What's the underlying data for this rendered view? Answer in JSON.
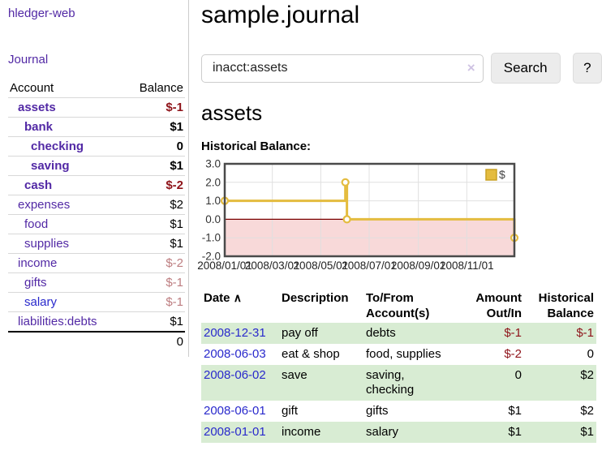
{
  "app": {
    "brand": "hledger-web",
    "nav_journal": "Journal"
  },
  "colors": {
    "accent_purple": "#5229a5",
    "link_blue": "#2929cc",
    "negative_red": "#8e1319",
    "negative_muted_red": "#bd7d80",
    "row_green": "#d8ecd3",
    "chart_gold": "#e4bc3f",
    "chart_negative_bg": "#f8d9d9",
    "chart_zero_line": "#7a0000",
    "chart_border": "#4a4a4a"
  },
  "sidebar": {
    "accounts_header": {
      "account": "Account",
      "balance": "Balance"
    },
    "accounts": [
      {
        "name": "assets",
        "indent": 1,
        "bold": true,
        "balance": "$-1",
        "balance_style": "neg"
      },
      {
        "name": "bank",
        "indent": 2,
        "bold": true,
        "balance": "$1",
        "balance_style": "pos"
      },
      {
        "name": "checking",
        "indent": 3,
        "bold": true,
        "balance": "0",
        "balance_style": "pos"
      },
      {
        "name": "saving",
        "indent": 3,
        "bold": true,
        "balance": "$1",
        "balance_style": "pos"
      },
      {
        "name": "cash",
        "indent": 2,
        "bold": true,
        "balance": "$-2",
        "balance_style": "neg"
      },
      {
        "name": "expenses",
        "indent": 1,
        "bold": false,
        "balance": "$2",
        "balance_style": "pos"
      },
      {
        "name": "food",
        "indent": 2,
        "bold": false,
        "balance": "$1",
        "balance_style": "pos"
      },
      {
        "name": "supplies",
        "indent": 2,
        "bold": false,
        "balance": "$1",
        "balance_style": "pos"
      },
      {
        "name": "income",
        "indent": 1,
        "bold": false,
        "balance": "$-2",
        "balance_style": "neg-muted"
      },
      {
        "name": "gifts",
        "indent": 2,
        "bold": false,
        "balance": "$-1",
        "balance_style": "neg-muted"
      },
      {
        "name": "salary",
        "indent": 2,
        "bold": false,
        "blue": true,
        "balance": "$-1",
        "balance_style": "neg-muted"
      },
      {
        "name": "liabilities:debts",
        "indent": 1,
        "bold": false,
        "balance": "$1",
        "balance_style": "pos"
      }
    ],
    "total": "0"
  },
  "header": {
    "title": "sample.journal"
  },
  "search": {
    "value": "inacct:assets",
    "clear_icon": "×",
    "button_label": "Search",
    "help_label": "?"
  },
  "report": {
    "heading": "assets",
    "chart_label": "Historical Balance:"
  },
  "chart_data": {
    "type": "line",
    "step": true,
    "title": "Historical Balance",
    "series": [
      {
        "name": "$",
        "color": "#e4bc3f",
        "points": [
          [
            "2008-01-01",
            1.0
          ],
          [
            "2008-06-01",
            2.0
          ],
          [
            "2008-06-03",
            0.0
          ],
          [
            "2008-12-31",
            -1.0
          ]
        ]
      }
    ],
    "xlim": [
      "2008-01-01",
      "2008-12-31"
    ],
    "ylim": [
      -2.0,
      3.0
    ],
    "x_ticks": [
      "2008/01/01",
      "2008/03/01",
      "2008/05/01",
      "2008/07/01",
      "2008/09/01",
      "2008/11/01"
    ],
    "y_ticks": [
      3.0,
      2.0,
      1.0,
      0.0,
      -1.0,
      -2.0
    ],
    "legend": "$",
    "legend_position": "top-right",
    "grid": true,
    "negative_region_color": "#f8d9d9",
    "zero_line_color": "#7a0000"
  },
  "register": {
    "sort_icon": "∧",
    "columns": [
      {
        "lines": [
          "Date"
        ],
        "sorted": true,
        "align": "left"
      },
      {
        "lines": [
          "Description"
        ],
        "align": "left"
      },
      {
        "lines": [
          "To/From",
          "Account(s)"
        ],
        "align": "left"
      },
      {
        "lines": [
          "Amount",
          "Out/In"
        ],
        "align": "right"
      },
      {
        "lines": [
          "Historical",
          "Balance"
        ],
        "align": "right"
      }
    ],
    "rows": [
      {
        "date": "2008-12-31",
        "description": "pay off",
        "accounts": "debts",
        "amount": "$-1",
        "amount_neg": true,
        "balance": "$-1",
        "balance_neg": true,
        "shaded": true
      },
      {
        "date": "2008-06-03",
        "description": "eat & shop",
        "accounts": "food, supplies",
        "amount": "$-2",
        "amount_neg": true,
        "balance": "0",
        "balance_neg": false,
        "shaded": false
      },
      {
        "date": "2008-06-02",
        "description": "save",
        "accounts": "saving, checking",
        "amount": "0",
        "amount_neg": false,
        "balance": "$2",
        "balance_neg": false,
        "shaded": true
      },
      {
        "date": "2008-06-01",
        "description": "gift",
        "accounts": "gifts",
        "amount": "$1",
        "amount_neg": false,
        "balance": "$2",
        "balance_neg": false,
        "shaded": false
      },
      {
        "date": "2008-01-01",
        "description": "income",
        "accounts": "salary",
        "amount": "$1",
        "amount_neg": false,
        "balance": "$1",
        "balance_neg": false,
        "shaded": true
      }
    ]
  }
}
